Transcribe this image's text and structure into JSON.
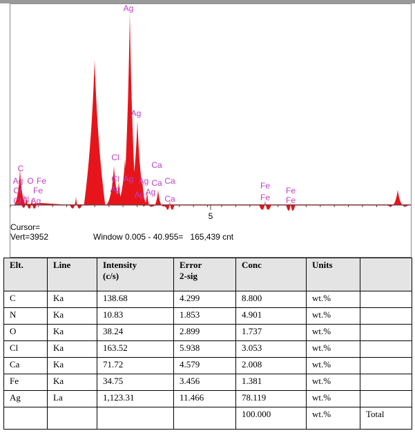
{
  "spectrum": {
    "peak_labels": [
      "Ag",
      "Ag",
      "Cl",
      "Ca",
      "Ag",
      "Cl",
      "Ag",
      "Ca",
      "Ca",
      "Ag",
      "Ag",
      "Ag",
      "Ca",
      "C",
      "Ag",
      "O",
      "Fe",
      "Cl",
      "Fe",
      "Cl",
      "N",
      "Ag",
      "Fe",
      "Fe",
      "Fe",
      "Fe"
    ],
    "axis_tick": "5",
    "cursor": "Cursor=",
    "vert": "Vert=3952",
    "window": "Window 0.005 - 40.955=   165,439 cnt"
  },
  "table": {
    "header": [
      "Elt.",
      "Line",
      "Intensity\n(c/s)",
      "Error\n2-sig",
      "Conc",
      "Units"
    ],
    "rows": [
      [
        "C",
        "Ka",
        "138.68",
        "4.299",
        "8.800",
        "wt.%"
      ],
      [
        "N",
        "Ka",
        "10.83",
        "1.853",
        "4.901",
        "wt.%"
      ],
      [
        "O",
        "Ka",
        "38.24",
        "2.899",
        "1.737",
        "wt.%"
      ],
      [
        "Cl",
        "Ka",
        "163.52",
        "5.938",
        "3.053",
        "wt.%"
      ],
      [
        "Ca",
        "Ka",
        "71.72",
        "4.579",
        "2.008",
        "wt.%"
      ],
      [
        "Fe",
        "Ka",
        "34.75",
        "3.456",
        "1.381",
        "wt.%"
      ],
      [
        "Ag",
        "La",
        "1,123.31",
        "11.466",
        "78.119",
        "wt.%"
      ]
    ],
    "total": {
      "conc": "100.000",
      "units": "wt.%",
      "label": "Total"
    }
  }
}
